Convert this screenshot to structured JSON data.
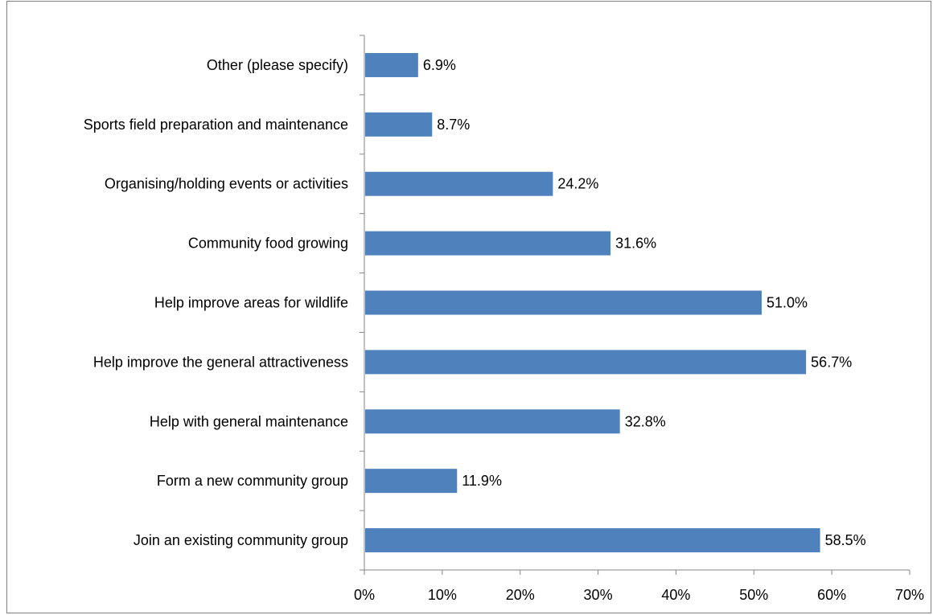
{
  "chart_data": {
    "type": "bar",
    "orientation": "horizontal",
    "categories": [
      "Other (please specify)",
      "Sports field preparation and maintenance",
      "Organising/holding events or activities",
      "Community food growing",
      "Help improve areas for wildlife",
      "Help improve the general attractiveness",
      "Help with general maintenance",
      "Form a new community group",
      "Join an existing community group"
    ],
    "values": [
      6.9,
      8.7,
      24.2,
      31.6,
      51.0,
      56.7,
      32.8,
      11.9,
      58.5
    ],
    "data_labels": [
      "6.9%",
      "8.7%",
      "24.2%",
      "31.6%",
      "51.0%",
      "56.7%",
      "32.8%",
      "11.9%",
      "58.5%"
    ],
    "xlim": [
      0,
      70
    ],
    "x_ticks": [
      "0%",
      "10%",
      "20%",
      "30%",
      "40%",
      "50%",
      "60%",
      "70%"
    ],
    "bar_color": "#4f81bd",
    "grid": false,
    "legend": "none",
    "title": "",
    "xlabel": "",
    "ylabel": ""
  }
}
